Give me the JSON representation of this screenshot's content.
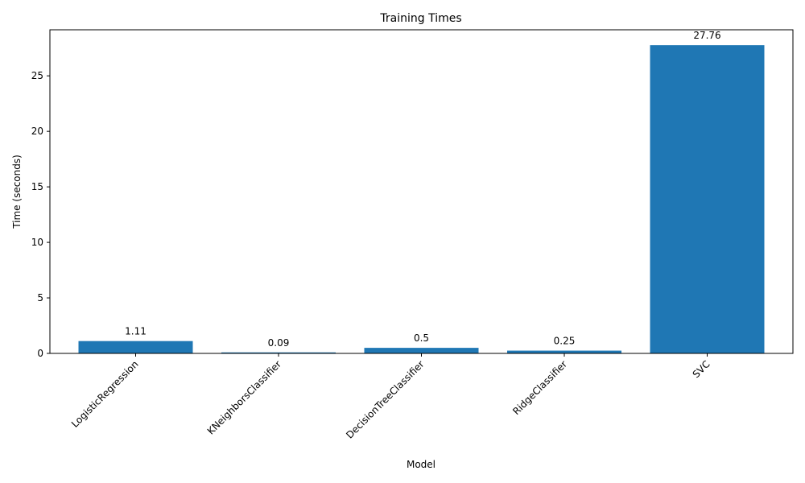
{
  "chart_data": {
    "type": "bar",
    "title": "Training Times",
    "xlabel": "Model",
    "ylabel": "Time (seconds)",
    "categories": [
      "LogisticRegression",
      "KNeighborsClassifier",
      "DecisionTreeClassifier",
      "RidgeClassifier",
      "SVC"
    ],
    "values": [
      1.11,
      0.09,
      0.5,
      0.25,
      27.76
    ],
    "data_labels": [
      "1.11",
      "0.09",
      "0.5",
      "0.25",
      "27.76"
    ],
    "ylim": [
      0,
      29.148
    ],
    "yticks": [
      0,
      5,
      10,
      15,
      20,
      25
    ],
    "ytick_labels": [
      "0",
      "5",
      "10",
      "15",
      "20",
      "25"
    ],
    "xtick_rotation_deg": 45,
    "bar_color": "#1f77b4",
    "grid": false,
    "legend": "none"
  }
}
